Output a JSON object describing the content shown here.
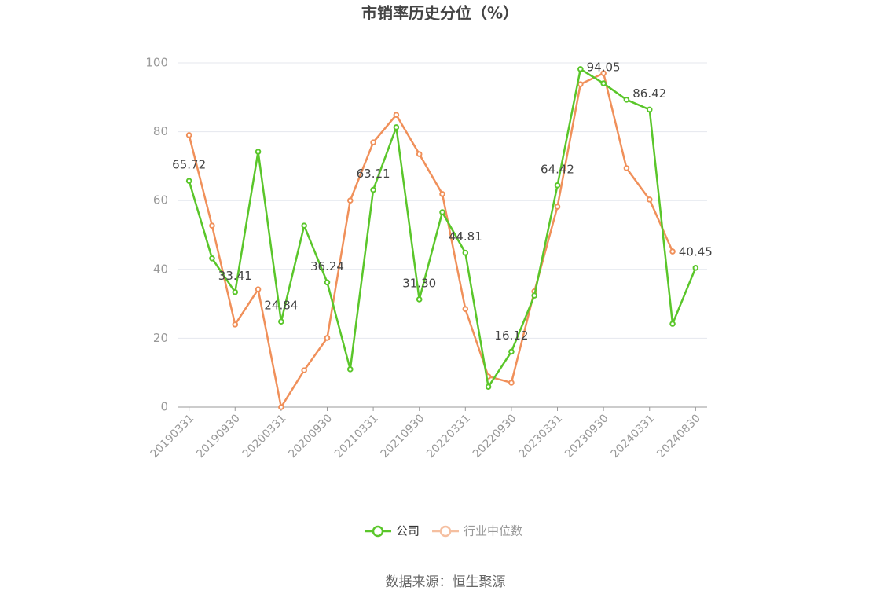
{
  "chart_data": {
    "type": "line",
    "title": "市销率历史分位（%）",
    "source": "数据来源：恒生聚源",
    "categories": [
      "20190331",
      null,
      "20190930",
      null,
      "20200331",
      null,
      "20200930",
      null,
      "20210331",
      null,
      "20210930",
      null,
      "20220331",
      null,
      "20220930",
      null,
      "20230331",
      null,
      "20230930",
      null,
      "20240331",
      null,
      "20240830"
    ],
    "series": [
      {
        "name": "公司",
        "color": "#5ac62a",
        "values": [
          65.72,
          43.2,
          33.41,
          74.2,
          24.84,
          52.7,
          36.24,
          11.0,
          63.11,
          81.3,
          31.3,
          56.6,
          44.81,
          5.9,
          16.12,
          32.4,
          64.42,
          98.2,
          94.05,
          89.3,
          86.42,
          24.2,
          40.45
        ],
        "value_labels": [
          "65.72",
          null,
          "33.41",
          null,
          "24.84",
          null,
          "36.24",
          null,
          "63.11",
          null,
          "31.30",
          null,
          "44.81",
          null,
          "16.12",
          null,
          "64.42",
          null,
          "94.05",
          null,
          "86.42",
          null,
          "40.45"
        ]
      },
      {
        "name": "行业中位数",
        "color": "#f0905a",
        "values": [
          79.0,
          52.7,
          24.0,
          34.2,
          0,
          10.7,
          20.1,
          60.0,
          76.9,
          84.9,
          73.5,
          61.9,
          28.5,
          8.9,
          7.1,
          33.6,
          58.2,
          93.8,
          97.0,
          69.4,
          60.3,
          45.2,
          null
        ]
      }
    ],
    "ylim": [
      0,
      100
    ],
    "yticks": [
      0,
      20,
      40,
      60,
      80,
      100
    ],
    "grid": true
  }
}
